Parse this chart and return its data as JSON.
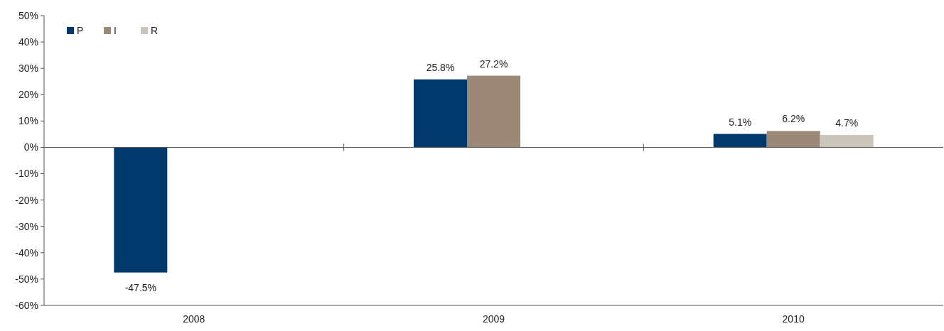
{
  "chart_data": {
    "type": "bar",
    "categories": [
      "2008",
      "2009",
      "2010"
    ],
    "series": [
      {
        "name": "P",
        "color": "#003a6c",
        "values": [
          -47.5,
          25.8,
          5.1
        ]
      },
      {
        "name": "I",
        "color": "#9c8877",
        "values": [
          null,
          27.2,
          6.2
        ]
      },
      {
        "name": "R",
        "color": "#ccc5bb",
        "values": [
          null,
          null,
          4.7
        ]
      }
    ],
    "ylim": [
      -60,
      50
    ],
    "yticks": [
      {
        "value": -60,
        "label": "-60%"
      },
      {
        "value": -50,
        "label": "-50%"
      },
      {
        "value": -40,
        "label": "-40%"
      },
      {
        "value": -30,
        "label": "-30%"
      },
      {
        "value": -20,
        "label": "-20%"
      },
      {
        "value": -10,
        "label": "-10%"
      },
      {
        "value": 0,
        "label": "0%"
      },
      {
        "value": 10,
        "label": "10%"
      },
      {
        "value": 20,
        "label": "20%"
      },
      {
        "value": 30,
        "label": "30%"
      },
      {
        "value": 40,
        "label": "40%"
      },
      {
        "value": 50,
        "label": "50%"
      }
    ],
    "value_labels": [
      [
        "-47.5%",
        "25.8%",
        "5.1%"
      ],
      [
        null,
        "27.2%",
        "6.2%"
      ],
      [
        null,
        null,
        "4.7%"
      ]
    ],
    "legend": "top left"
  }
}
